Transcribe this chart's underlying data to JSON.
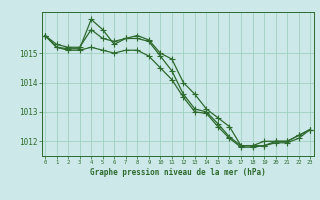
{
  "title": "Graphe pression niveau de la mer (hPa)",
  "xlabel_hours": [
    0,
    1,
    2,
    3,
    4,
    5,
    6,
    7,
    8,
    9,
    10,
    11,
    12,
    13,
    14,
    15,
    16,
    17,
    18,
    19,
    20,
    21,
    22,
    23
  ],
  "line1": [
    1015.6,
    1015.3,
    1015.2,
    1015.2,
    1015.8,
    1015.5,
    1015.4,
    1015.5,
    1015.5,
    1015.4,
    1014.9,
    1014.4,
    1013.6,
    1013.1,
    1013.0,
    1012.6,
    1012.15,
    1011.85,
    1011.85,
    1012.0,
    1012.0,
    1012.0,
    1012.2,
    1012.4
  ],
  "line2": [
    1015.6,
    1015.2,
    1015.15,
    1015.15,
    1016.15,
    1015.8,
    1015.3,
    1015.5,
    1015.6,
    1015.45,
    1015.0,
    1014.8,
    1014.0,
    1013.6,
    1013.1,
    1012.8,
    1012.5,
    1011.85,
    1011.85,
    1011.85,
    1012.0,
    1012.0,
    1012.2,
    1012.4
  ],
  "line3": [
    1015.6,
    1015.2,
    1015.1,
    1015.1,
    1015.2,
    1015.1,
    1015.0,
    1015.1,
    1015.1,
    1014.9,
    1014.5,
    1014.1,
    1013.5,
    1013.0,
    1012.95,
    1012.5,
    1012.1,
    1011.8,
    1011.8,
    1011.85,
    1011.95,
    1011.95,
    1012.1,
    1012.4
  ],
  "ylim": [
    1011.5,
    1016.4
  ],
  "yticks": [
    1012,
    1013,
    1014,
    1015
  ],
  "line_color": "#2d6a2d",
  "bg_color": "#cce8e8",
  "grid_color": "#99ccbb",
  "title_color": "#2d6a2d",
  "title_bg": "#a8d8a0",
  "marker": "+",
  "linewidth": 0.9,
  "markersize": 4.0
}
